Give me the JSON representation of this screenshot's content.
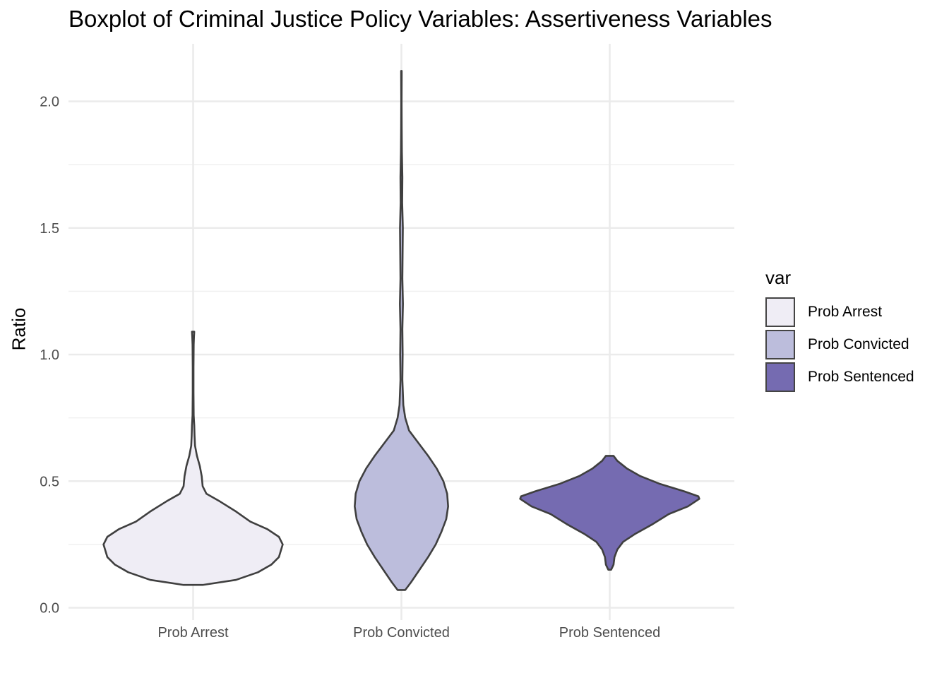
{
  "chart_data": {
    "type": "violin",
    "title": "Boxplot of Criminal Justice Policy Variables: Assertiveness Variables",
    "xlabel": "",
    "ylabel": "Ratio",
    "ylim": [
      0.0,
      2.2
    ],
    "yticks": [
      "0.0",
      "0.5",
      "1.0",
      "1.5",
      "2.0"
    ],
    "grid": true,
    "legend": {
      "title": "var",
      "position": "right"
    },
    "categories": [
      "Prob Arrest",
      "Prob Convicted",
      "Prob Sentenced"
    ],
    "series": [
      {
        "name": "Prob Arrest",
        "color": "#efedf5",
        "min": 0.09,
        "max": 1.09,
        "density": [
          [
            0.09,
            0.1
          ],
          [
            0.11,
            0.45
          ],
          [
            0.14,
            0.68
          ],
          [
            0.17,
            0.82
          ],
          [
            0.2,
            0.9
          ],
          [
            0.25,
            0.94
          ],
          [
            0.28,
            0.9
          ],
          [
            0.31,
            0.78
          ],
          [
            0.34,
            0.6
          ],
          [
            0.38,
            0.45
          ],
          [
            0.42,
            0.28
          ],
          [
            0.45,
            0.14
          ],
          [
            0.48,
            0.1
          ],
          [
            0.52,
            0.09
          ],
          [
            0.56,
            0.07
          ],
          [
            0.6,
            0.04
          ],
          [
            0.64,
            0.02
          ],
          [
            0.68,
            0.015
          ],
          [
            0.72,
            0.012
          ],
          [
            0.76,
            0.006
          ],
          [
            0.85,
            0.004
          ],
          [
            0.95,
            0.004
          ],
          [
            1.04,
            0.006
          ],
          [
            1.07,
            0.009
          ],
          [
            1.09,
            0.012
          ]
        ]
      },
      {
        "name": "Prob Convicted",
        "color": "#bcbddc",
        "min": 0.07,
        "max": 2.12,
        "density": [
          [
            0.07,
            0.04
          ],
          [
            0.1,
            0.1
          ],
          [
            0.15,
            0.19
          ],
          [
            0.2,
            0.28
          ],
          [
            0.25,
            0.36
          ],
          [
            0.3,
            0.42
          ],
          [
            0.35,
            0.47
          ],
          [
            0.4,
            0.49
          ],
          [
            0.45,
            0.48
          ],
          [
            0.5,
            0.44
          ],
          [
            0.55,
            0.37
          ],
          [
            0.6,
            0.28
          ],
          [
            0.65,
            0.18
          ],
          [
            0.7,
            0.08
          ],
          [
            0.75,
            0.04
          ],
          [
            0.8,
            0.02
          ],
          [
            0.9,
            0.01
          ],
          [
            1.0,
            0.013
          ],
          [
            1.1,
            0.01
          ],
          [
            1.2,
            0.016
          ],
          [
            1.3,
            0.01
          ],
          [
            1.5,
            0.015
          ],
          [
            1.6,
            0.008
          ],
          [
            1.7,
            0.01
          ],
          [
            1.8,
            0.005
          ],
          [
            1.9,
            0.003
          ],
          [
            2.0,
            0.002
          ],
          [
            2.1,
            0.003
          ],
          [
            2.12,
            0.003
          ]
        ]
      },
      {
        "name": "Prob Sentenced",
        "color": "#756bb1",
        "min": 0.15,
        "max": 0.6,
        "density": [
          [
            0.15,
            0.015
          ],
          [
            0.17,
            0.04
          ],
          [
            0.2,
            0.05
          ],
          [
            0.23,
            0.08
          ],
          [
            0.26,
            0.14
          ],
          [
            0.29,
            0.26
          ],
          [
            0.33,
            0.45
          ],
          [
            0.37,
            0.62
          ],
          [
            0.4,
            0.82
          ],
          [
            0.43,
            0.94
          ],
          [
            0.44,
            0.93
          ],
          [
            0.46,
            0.78
          ],
          [
            0.49,
            0.52
          ],
          [
            0.52,
            0.32
          ],
          [
            0.55,
            0.18
          ],
          [
            0.58,
            0.08
          ],
          [
            0.6,
            0.04
          ]
        ]
      }
    ]
  }
}
